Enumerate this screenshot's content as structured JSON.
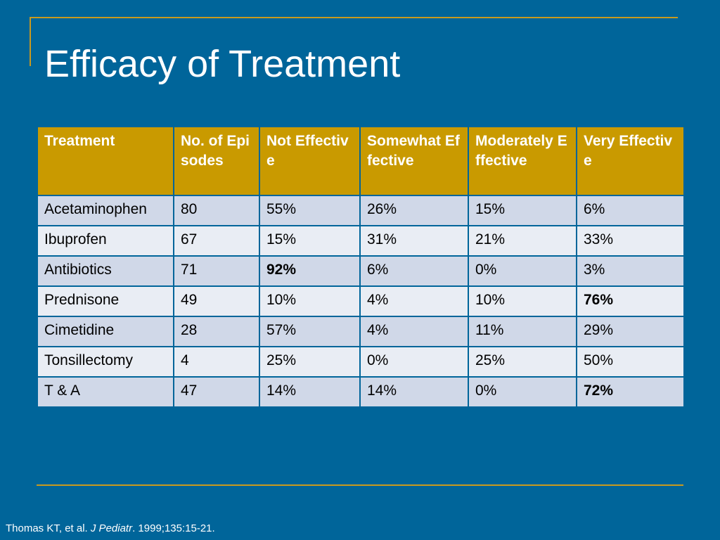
{
  "slide": {
    "title": "Efficacy of Treatment",
    "colors": {
      "background": "#00659a",
      "accent_gold": "#c99a00",
      "row_odd": "#d0d8e8",
      "row_even": "#e9edf4"
    }
  },
  "table": {
    "headers": [
      "Treatment",
      "No. of Episodes",
      "Not Effective",
      "Somewhat Effective",
      "Moderately Effective",
      "Very Effective"
    ],
    "rows": [
      [
        "Acetaminophen",
        "80",
        "55%",
        "26%",
        "15%",
        "6%"
      ],
      [
        "Ibuprofen",
        "67",
        "15%",
        "31%",
        "21%",
        "33%"
      ],
      [
        "Antibiotics",
        "71",
        "92%",
        "6%",
        "0%",
        "3%"
      ],
      [
        "Prednisone",
        "49",
        "10%",
        "4%",
        "10%",
        "76%"
      ],
      [
        "Cimetidine",
        "28",
        "57%",
        "4%",
        "11%",
        "29%"
      ],
      [
        "Tonsillectomy",
        "4",
        "25%",
        "0%",
        "25%",
        "50%"
      ],
      [
        "T & A",
        "47",
        "14%",
        "14%",
        "0%",
        "72%"
      ]
    ],
    "bold_cells": [
      {
        "row": 2,
        "col": 2
      },
      {
        "row": 3,
        "col": 5
      },
      {
        "row": 6,
        "col": 5
      }
    ]
  },
  "citation": {
    "authors": "Thomas KT, et al. ",
    "journal": "J Pediatr",
    "details": ". 1999;135:15-21."
  }
}
